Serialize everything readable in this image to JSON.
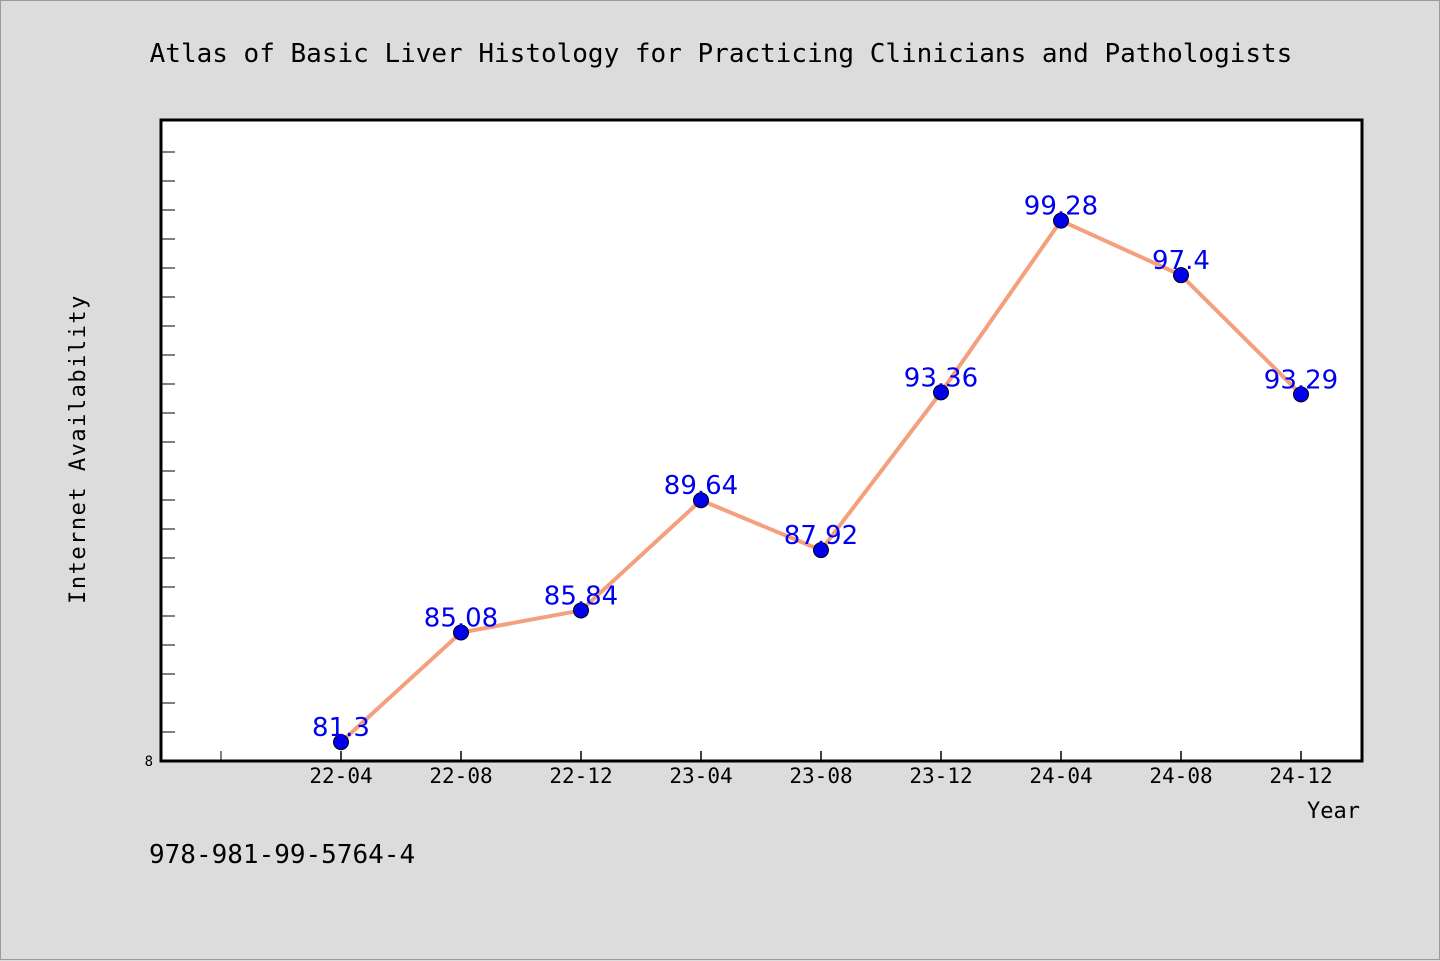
{
  "chart_data": {
    "type": "line",
    "title": "Atlas of Basic Liver Histology for Practicing Clinicians and Pathologists",
    "xlabel": "Year",
    "ylabel": "Internet Availability",
    "categories": [
      "22-04",
      "22-08",
      "22-12",
      "23-04",
      "23-08",
      "23-12",
      "24-04",
      "24-08",
      "24-12"
    ],
    "series": [
      {
        "values": [
          81.3,
          85.08,
          85.84,
          89.64,
          87.92,
          93.36,
          99.28,
          97.4,
          93.29
        ],
        "labels": [
          "81.3",
          "85.08",
          "85.84",
          "89.64",
          "87.92",
          "93.36",
          "99.28",
          "97.4",
          "93.29"
        ]
      }
    ],
    "y_tick_labels": [
      "8"
    ],
    "ylim": [
      80.65,
      102.75
    ],
    "grid": false,
    "legend": "none"
  },
  "footer": {
    "isbn": "978-981-99-5764-4"
  },
  "colors": {
    "background": "#dcdcdc",
    "plot_background": "#ffffff",
    "line": "#f4a07e",
    "marker": "#0000ee",
    "data_label": "#0000ee"
  }
}
